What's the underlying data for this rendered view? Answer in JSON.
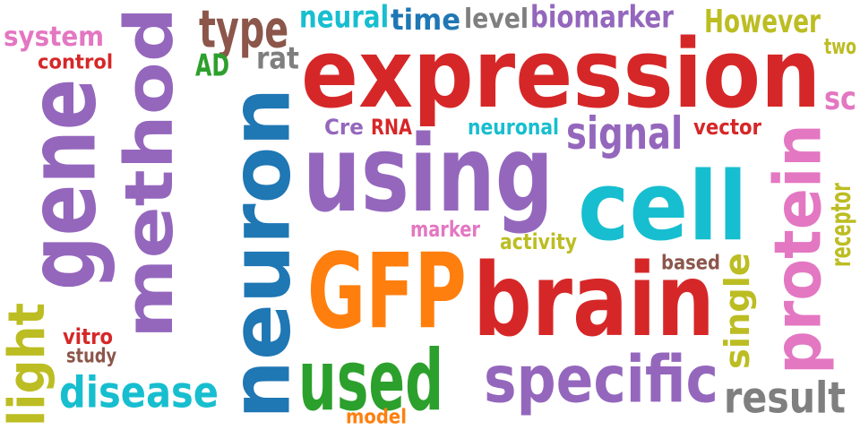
{
  "words": [
    {
      "text": "expression",
      "color": "#d62728"
    },
    {
      "text": "neuron",
      "color": "#1f77b4"
    },
    {
      "text": "using",
      "color": "#9467bd"
    },
    {
      "text": "GFP",
      "color": "#ff7f0e"
    },
    {
      "text": "brain",
      "color": "#d62728"
    },
    {
      "text": "cell",
      "color": "#17becf"
    },
    {
      "text": "method",
      "color": "#9467bd"
    },
    {
      "text": "gene",
      "color": "#9467bd"
    },
    {
      "text": "used",
      "color": "#2ca02c"
    },
    {
      "text": "specific",
      "color": "#9467bd"
    },
    {
      "text": "protein",
      "color": "#e377c2"
    },
    {
      "text": "light",
      "color": "#bcbd22"
    },
    {
      "text": "type",
      "color": "#8c564b"
    },
    {
      "text": "disease",
      "color": "#17becf"
    },
    {
      "text": "result",
      "color": "#7f7f7f"
    },
    {
      "text": "signal",
      "color": "#9467bd"
    },
    {
      "text": "single",
      "color": "#bcbd22"
    },
    {
      "text": "However",
      "color": "#bcbd22"
    },
    {
      "text": "biomarker",
      "color": "#9467bd"
    },
    {
      "text": "neural",
      "color": "#17becf"
    },
    {
      "text": "time",
      "color": "#1f77b4"
    },
    {
      "text": "level",
      "color": "#7f7f7f"
    },
    {
      "text": "system",
      "color": "#e377c2"
    },
    {
      "text": "rat",
      "color": "#7f7f7f"
    },
    {
      "text": "AD",
      "color": "#2ca02c"
    },
    {
      "text": "control",
      "color": "#d62728"
    },
    {
      "text": "two",
      "color": "#bcbd22"
    },
    {
      "text": "sc",
      "color": "#e377c2"
    },
    {
      "text": "vector",
      "color": "#d62728"
    },
    {
      "text": "Cre",
      "color": "#9467bd"
    },
    {
      "text": "RNA",
      "color": "#d62728"
    },
    {
      "text": "neuronal",
      "color": "#17becf"
    },
    {
      "text": "receptor",
      "color": "#bcbd22"
    },
    {
      "text": "marker",
      "color": "#e377c2"
    },
    {
      "text": "activity",
      "color": "#bcbd22"
    },
    {
      "text": "based",
      "color": "#8c564b"
    },
    {
      "text": "vitro",
      "color": "#d62728"
    },
    {
      "text": "study",
      "color": "#8c564b"
    },
    {
      "text": "model",
      "color": "#ff7f0e"
    }
  ]
}
